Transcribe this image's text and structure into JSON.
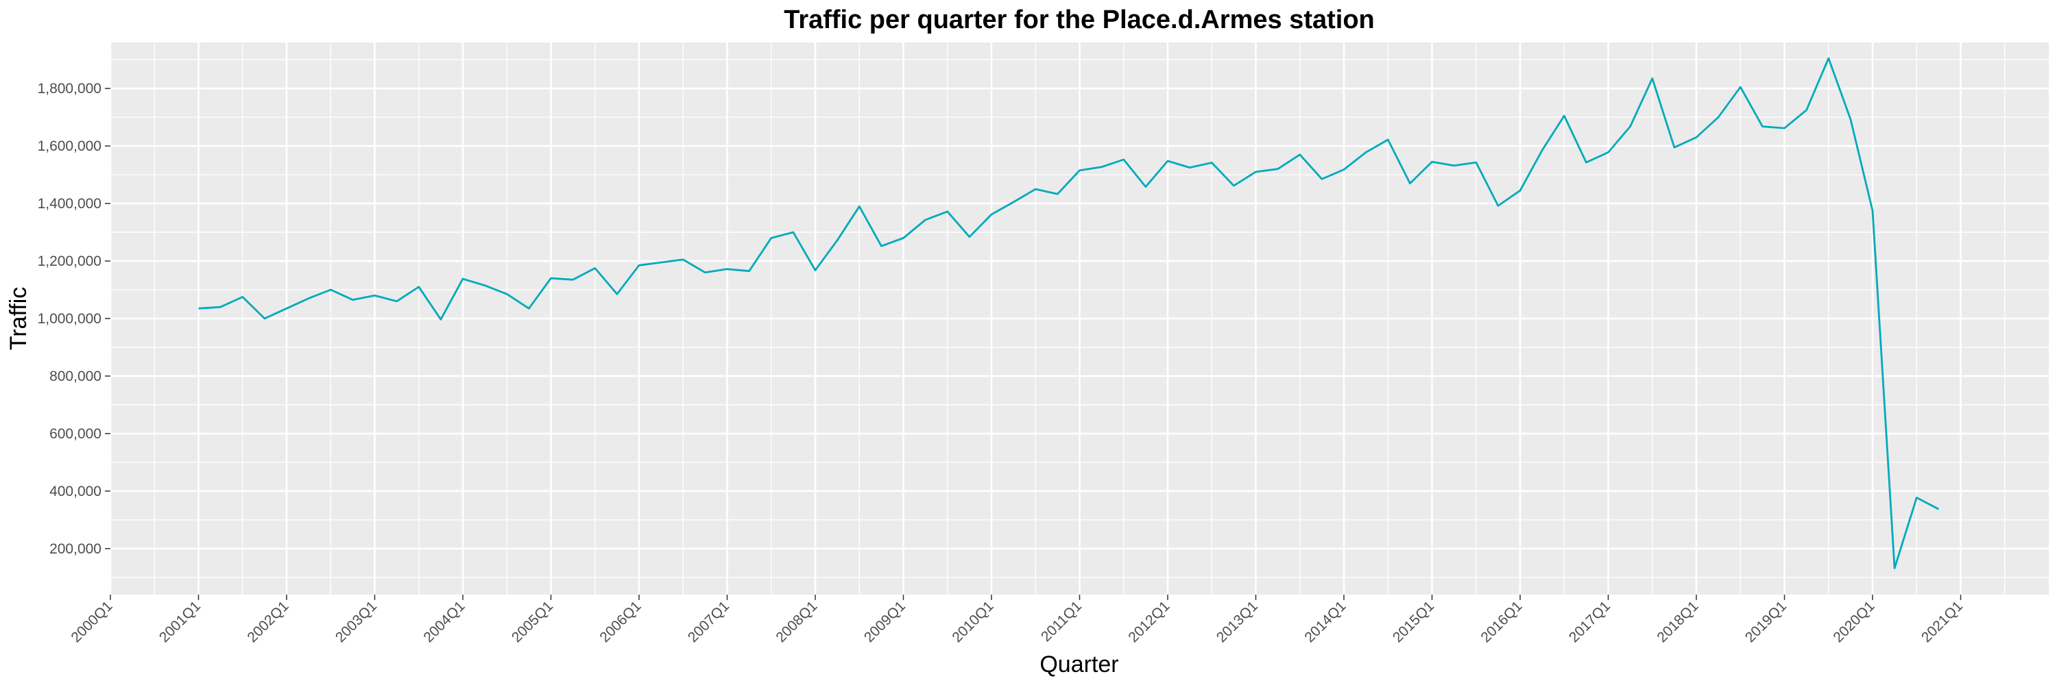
{
  "chart_data": {
    "type": "line",
    "title": "Traffic per quarter for the Place.d.Armes station",
    "xlabel": "Quarter",
    "ylabel": "Traffic",
    "x_ticks": [
      "2000Q1",
      "2001Q1",
      "2002Q1",
      "2003Q1",
      "2004Q1",
      "2005Q1",
      "2006Q1",
      "2007Q1",
      "2008Q1",
      "2009Q1",
      "2010Q1",
      "2011Q1",
      "2012Q1",
      "2013Q1",
      "2014Q1",
      "2015Q1",
      "2016Q1",
      "2017Q1",
      "2018Q1",
      "2019Q1",
      "2020Q1",
      "2021Q1"
    ],
    "y_ticks": [
      200000,
      400000,
      600000,
      800000,
      1000000,
      1200000,
      1400000,
      1600000,
      1800000
    ],
    "y_tick_labels": [
      "200,000",
      "400,000",
      "600,000",
      "800,000",
      "1,000,000",
      "1,200,000",
      "1,400,000",
      "1,600,000",
      "1,800,000"
    ],
    "xlim": [
      "2000Q1",
      "2022Q1"
    ],
    "ylim": [
      40000,
      1960000
    ],
    "grid": true,
    "background": "#ebebeb",
    "line_color": "#00aabb",
    "x": [
      "2001Q1",
      "2001Q2",
      "2001Q3",
      "2001Q4",
      "2002Q1",
      "2002Q2",
      "2002Q3",
      "2002Q4",
      "2003Q1",
      "2003Q2",
      "2003Q3",
      "2003Q4",
      "2004Q1",
      "2004Q2",
      "2004Q3",
      "2004Q4",
      "2005Q1",
      "2005Q2",
      "2005Q3",
      "2005Q4",
      "2006Q1",
      "2006Q2",
      "2006Q3",
      "2006Q4",
      "2007Q1",
      "2007Q2",
      "2007Q3",
      "2007Q4",
      "2008Q1",
      "2008Q2",
      "2008Q3",
      "2008Q4",
      "2009Q1",
      "2009Q2",
      "2009Q3",
      "2009Q4",
      "2010Q1",
      "2010Q2",
      "2010Q3",
      "2010Q4",
      "2011Q1",
      "2011Q2",
      "2011Q3",
      "2011Q4",
      "2012Q1",
      "2012Q2",
      "2012Q3",
      "2012Q4",
      "2013Q1",
      "2013Q2",
      "2013Q3",
      "2013Q4",
      "2014Q1",
      "2014Q2",
      "2014Q3",
      "2014Q4",
      "2015Q1",
      "2015Q2",
      "2015Q3",
      "2015Q4",
      "2016Q1",
      "2016Q2",
      "2016Q3",
      "2016Q4",
      "2017Q1",
      "2017Q2",
      "2017Q3",
      "2017Q4",
      "2018Q1",
      "2018Q2",
      "2018Q3",
      "2018Q4",
      "2019Q1",
      "2019Q2",
      "2019Q3",
      "2019Q4",
      "2020Q1",
      "2020Q2",
      "2020Q3",
      "2020Q4"
    ],
    "values": [
      1035000,
      1040000,
      1075000,
      1000000,
      1035000,
      1070000,
      1100000,
      1065000,
      1080000,
      1060000,
      1110000,
      997000,
      1138000,
      1115000,
      1085000,
      1035000,
      1140000,
      1135000,
      1175000,
      1085000,
      1185000,
      1195000,
      1205000,
      1160000,
      1172000,
      1165000,
      1280000,
      1300000,
      1168000,
      1272000,
      1390000,
      1252000,
      1280000,
      1343000,
      1372000,
      1284000,
      1362000,
      1405000,
      1450000,
      1433000,
      1515000,
      1527000,
      1553000,
      1458000,
      1548000,
      1525000,
      1542000,
      1462000,
      1510000,
      1520000,
      1570000,
      1485000,
      1518000,
      1578000,
      1622000,
      1470000,
      1545000,
      1532000,
      1543000,
      1392000,
      1445000,
      1585000,
      1705000,
      1543000,
      1578000,
      1668000,
      1835000,
      1595000,
      1630000,
      1700000,
      1805000,
      1668000,
      1662000,
      1725000,
      1905000,
      1693000,
      1375000,
      132000,
      377000,
      337000
    ]
  }
}
